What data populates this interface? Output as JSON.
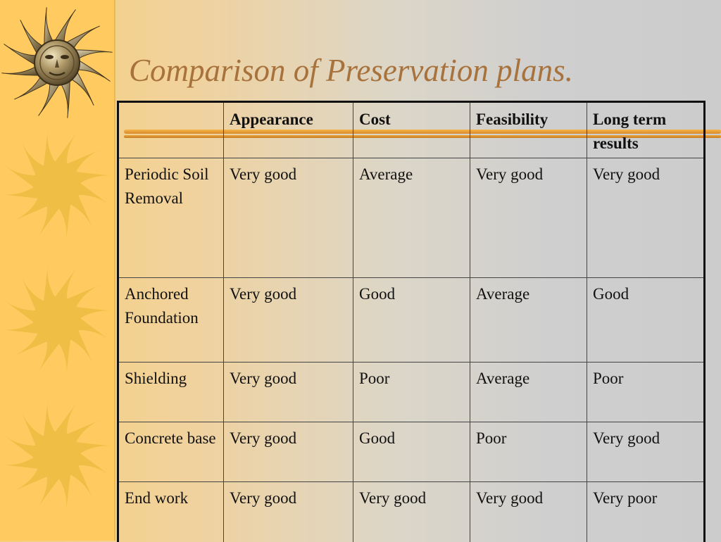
{
  "slide": {
    "title": "Comparison of Preservation plans."
  },
  "table": {
    "headers": [
      "",
      "Appearance",
      "Cost",
      "Feasibility",
      "Long term results"
    ],
    "rows": [
      [
        "Periodic Soil Removal",
        "Very good",
        "Average",
        "Very good",
        "Very good"
      ],
      [
        "Anchored Foundation",
        "Very good",
        "Good",
        "Average",
        "Good"
      ],
      [
        "Shielding",
        "Very good",
        "Poor",
        "Average",
        "Poor"
      ],
      [
        "Concrete base",
        "Very good",
        "Good",
        "Poor",
        "Very good"
      ],
      [
        "End work",
        "Very good",
        "Very good",
        "Very good",
        "Very poor"
      ]
    ]
  },
  "decor": {
    "icons": [
      "sun-face-icon",
      "sun-icon",
      "sun-icon",
      "sun-icon"
    ]
  },
  "colors": {
    "left_band": "#ffca5f",
    "title": "#a8723c",
    "rule": "#e2962f",
    "sun": "#efbe45"
  }
}
